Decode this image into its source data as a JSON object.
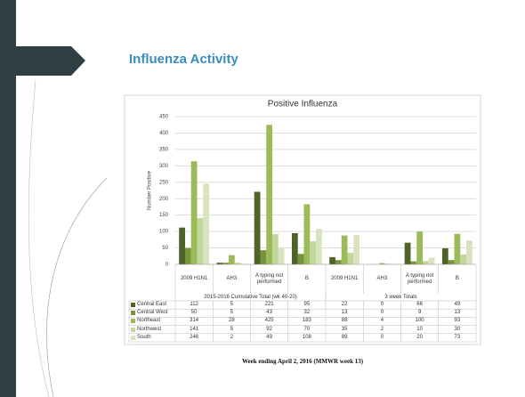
{
  "slide": {
    "title": "Influenza Activity",
    "footer": "Week ending April 2, 2016 (MMWR week 13)"
  },
  "chart_data": {
    "type": "bar",
    "title": "Positive Influenza",
    "y_label": "Number Positive",
    "categories": [
      "2009 H1N1",
      "AH3",
      "A typing not performed",
      "B",
      "2009 H1N1",
      "AH3",
      "A typing not performed",
      "B"
    ],
    "groups": [
      {
        "label": "2015-2016 Cumulative Total (wk 40-20)",
        "count": 4
      },
      {
        "label": "3 week Totals",
        "count": 4
      }
    ],
    "series": [
      {
        "name": "Central East",
        "color": "#4f6228",
        "values": [
          112,
          5,
          221,
          95,
          22,
          0,
          66,
          49
        ]
      },
      {
        "name": "Central West",
        "color": "#77933c",
        "values": [
          50,
          5,
          43,
          32,
          13,
          0,
          9,
          13
        ]
      },
      {
        "name": "Northeast",
        "color": "#9bbb59",
        "values": [
          314,
          28,
          425,
          183,
          88,
          4,
          100,
          93
        ]
      },
      {
        "name": "Northwest",
        "color": "#c3d69b",
        "values": [
          141,
          5,
          92,
          70,
          35,
          2,
          10,
          30
        ]
      },
      {
        "name": "South",
        "color": "#d7e4bd",
        "values": [
          246,
          2,
          49,
          108,
          89,
          0,
          20,
          73
        ]
      }
    ],
    "ylim": [
      0,
      450
    ],
    "yticks": [
      0,
      50,
      100,
      150,
      200,
      250,
      300,
      350,
      400,
      450
    ],
    "grid": true
  }
}
